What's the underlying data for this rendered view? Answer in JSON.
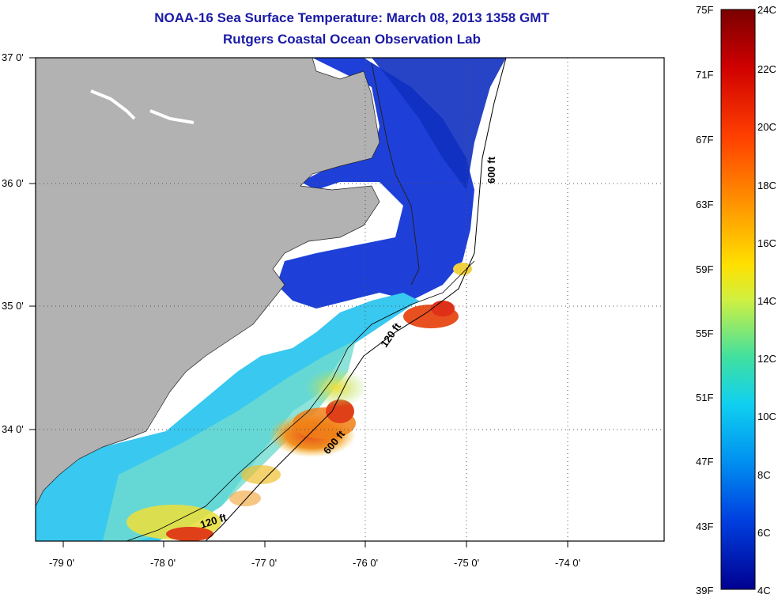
{
  "title": "NOAA-16 Sea Surface Temperature:  March 08, 2013 1358 GMT",
  "subtitle": "Rutgers Coastal Ocean Observation Lab",
  "lat_labels": [
    "37 0'",
    "36 0'",
    "35 0'",
    "34 0'"
  ],
  "lon_labels": [
    "-79 0'",
    "-78 0'",
    "-77 0'",
    "-76 0'",
    "-75 0'",
    "-74 0'"
  ],
  "isobath_labels": [
    "600 ft",
    "120 ft",
    "600 ft",
    "120 ft"
  ],
  "colorbar": {
    "fahrenheit": [
      "75F",
      "71F",
      "67F",
      "63F",
      "59F",
      "55F",
      "51F",
      "47F",
      "43F",
      "39F"
    ],
    "celsius": [
      "24C",
      "22C",
      "20C",
      "18C",
      "16C",
      "14C",
      "12C",
      "10C",
      "8C",
      "6C",
      "4C"
    ]
  },
  "colors": {
    "land": "#b2b2b2",
    "title": "#1a1aa6"
  }
}
